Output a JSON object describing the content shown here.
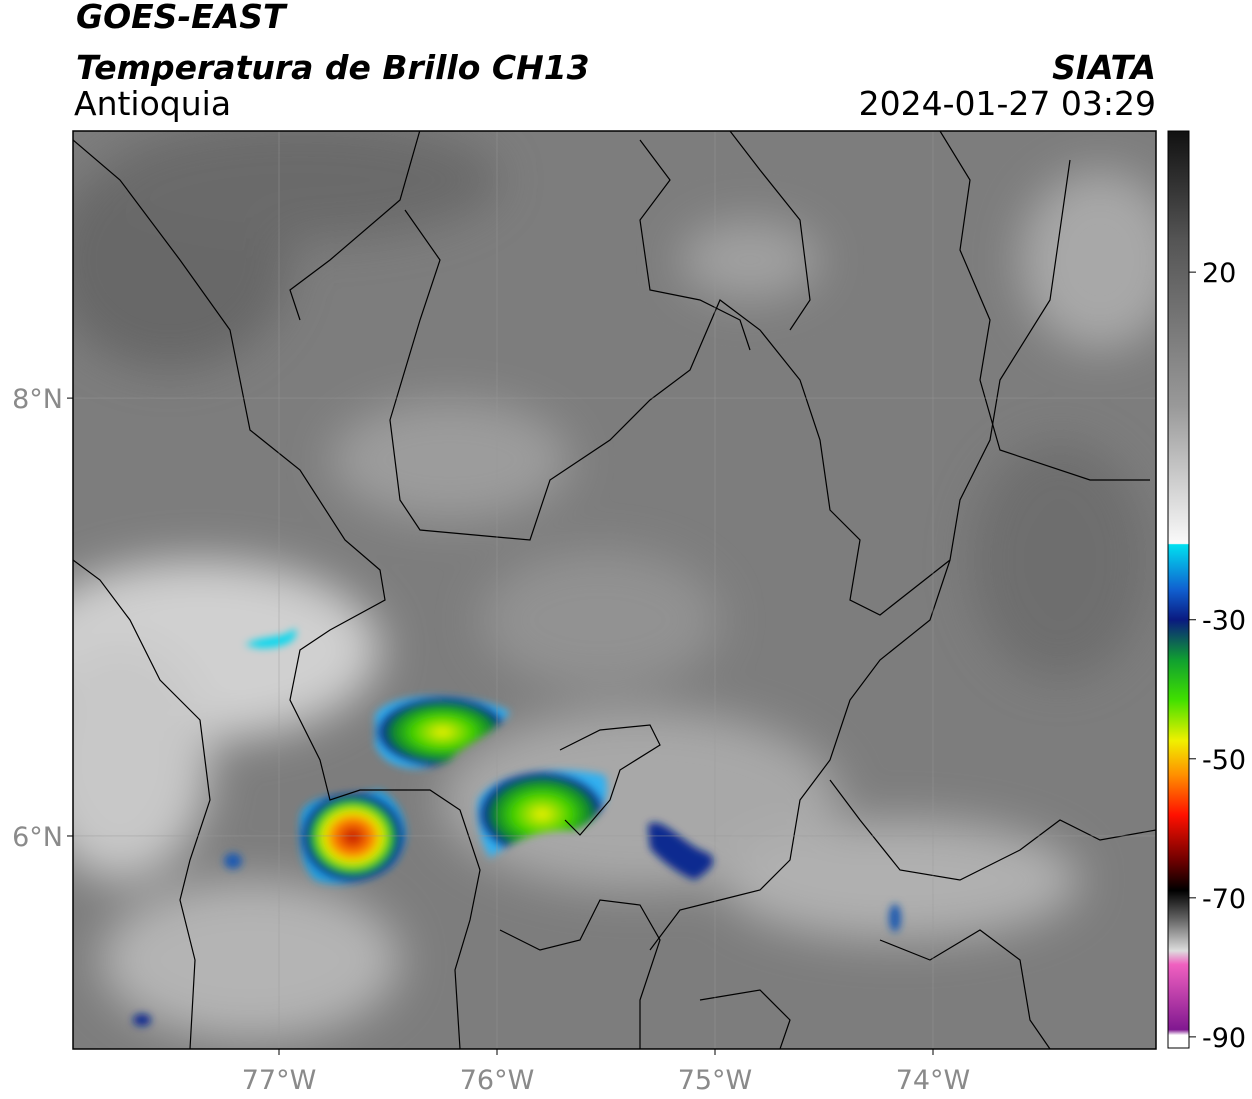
{
  "header": {
    "title": "GOES-EAST",
    "subtitle": "Temperatura de Brillo CH13",
    "region": "Antioquia",
    "source": "SIATA",
    "timestamp": "2024-01-27 03:29"
  },
  "map": {
    "xlim": [
      -77.945,
      -72.977
    ],
    "ylim": [
      5.027,
      9.22
    ],
    "xticks": [
      {
        "value": -77,
        "label": "77°W"
      },
      {
        "value": -76,
        "label": "76°W"
      },
      {
        "value": -75,
        "label": "75°W"
      },
      {
        "value": -74,
        "label": "74°W"
      }
    ],
    "yticks": [
      {
        "value": 8,
        "label": "8°N"
      },
      {
        "value": 6,
        "label": "6°N"
      }
    ],
    "grid": true
  },
  "colorbar": {
    "lim": [
      -91.6,
      40.3
    ],
    "ticks": [
      20,
      -30,
      -50,
      -70,
      -90
    ]
  }
}
